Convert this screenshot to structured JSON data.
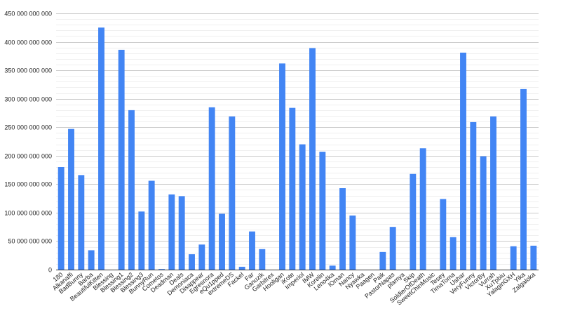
{
  "chart_data": {
    "type": "bar",
    "title": "",
    "xlabel": "",
    "ylabel": "",
    "ylim": [
      0,
      450000000000
    ],
    "yticks": [
      0,
      50000000000,
      100000000000,
      150000000000,
      200000000000,
      250000000000,
      300000000000,
      350000000000,
      400000000000,
      450000000000
    ],
    "ytick_labels": [
      "0",
      "50 000 000 000",
      "100 000 000 000",
      "150 000 000 000",
      "200 000 000 000",
      "250 000 000 000",
      "300 000 000 000",
      "350 000 000 000",
      "400 000 000 000",
      "450 000 000 000"
    ],
    "minor_gridlines": true,
    "legend": "none",
    "bar_color": "#4285f4",
    "categories": [
      "180",
      "Alkanaffi",
      "BadBunny",
      "Barba",
      "BeautifulKitten",
      "Blessing",
      "Blessing1",
      "Blessing2",
      "Blessing3",
      "BunnyRun",
      "Cometos",
      "Deadman",
      "Deals",
      "Demoniaca",
      "Disappear",
      "Egresnora",
      "eQu1pped",
      "extremeDS",
      "Fackel",
      "Far",
      "Ganuzik",
      "Garbitrex",
      "Hooligan",
      "iKote",
      "Imperiol",
      "IMW",
      "Korelin",
      "Leno4ka",
      "lOman",
      "Nancy",
      "Nyawka",
      "Paagen",
      "Paik",
      "PastorNapas",
      "plamya",
      "Skip",
      "SoldierOfDeath",
      "SweetChinMusic",
      "Tesey",
      "TimaToma",
      "Ushar",
      "VeryFunny",
      "VictorBy",
      "Vurrah",
      "XuTpbiu",
      "YalaginGXH",
      "Yika",
      "Zalgaloka"
    ],
    "values": [
      180000000000,
      247000000000,
      166000000000,
      34000000000,
      425000000000,
      0,
      386000000000,
      280000000000,
      102000000000,
      156000000000,
      1000000000,
      132000000000,
      129000000000,
      27000000000,
      44000000000,
      285000000000,
      98000000000,
      269000000000,
      5000000000,
      67000000000,
      36000000000,
      0,
      362000000000,
      284000000000,
      220000000000,
      389000000000,
      207000000000,
      7000000000,
      143000000000,
      95000000000,
      0,
      0,
      31000000000,
      75000000000,
      0,
      168000000000,
      213000000000,
      0,
      124000000000,
      57000000000,
      381000000000,
      259000000000,
      199000000000,
      269000000000,
      0,
      41000000000,
      317000000000,
      42000000000
    ]
  }
}
